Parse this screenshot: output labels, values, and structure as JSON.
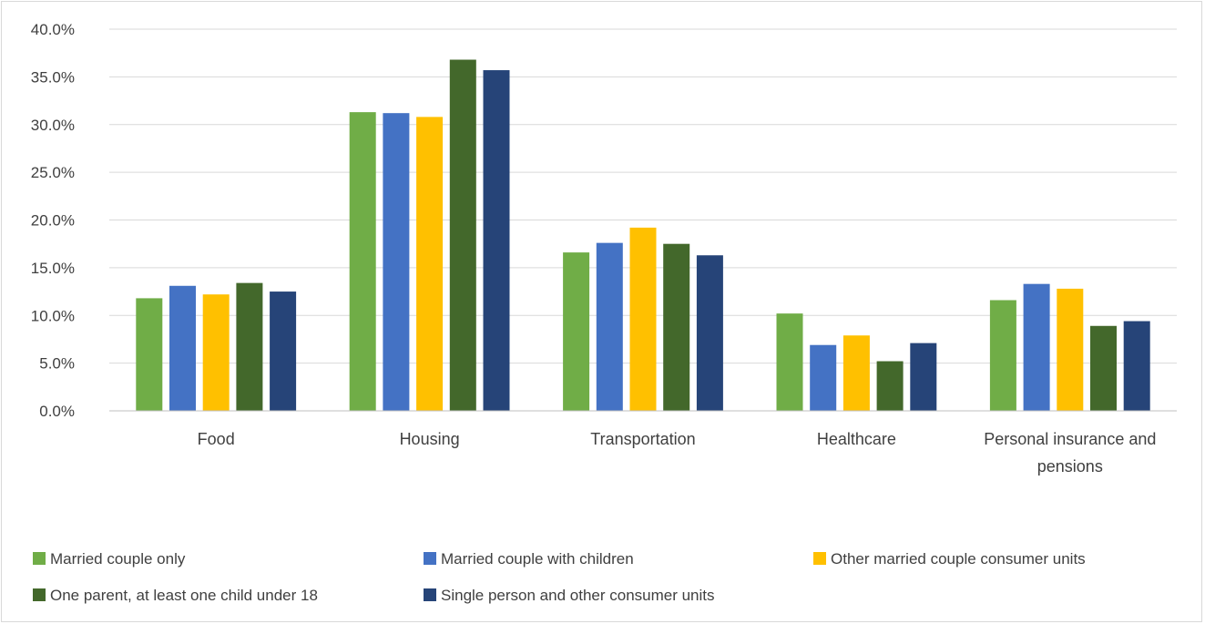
{
  "chart_data": {
    "type": "bar",
    "title": "",
    "xlabel": "",
    "ylabel": "",
    "ylim": [
      0,
      40
    ],
    "y_ticks": [
      "0.0%",
      "5.0%",
      "10.0%",
      "15.0%",
      "20.0%",
      "25.0%",
      "30.0%",
      "35.0%",
      "40.0%"
    ],
    "y_tick_values": [
      0,
      5,
      10,
      15,
      20,
      25,
      30,
      35,
      40
    ],
    "grid": true,
    "legend_position": "bottom",
    "categories": [
      "Food",
      "Housing",
      "Transportation",
      "Healthcare",
      "Personal insurance and pensions"
    ],
    "category_label_lines": [
      [
        "Food"
      ],
      [
        "Housing"
      ],
      [
        "Transportation"
      ],
      [
        "Healthcare"
      ],
      [
        "Personal insurance and",
        "pensions"
      ]
    ],
    "series": [
      {
        "name": "Married couple only",
        "color": "#70AD47",
        "values": [
          11.8,
          31.3,
          16.6,
          10.2,
          11.6
        ]
      },
      {
        "name": "Married couple with children",
        "color": "#4472C4",
        "values": [
          13.1,
          31.2,
          17.6,
          6.9,
          13.3
        ]
      },
      {
        "name": "Other married couple consumer units",
        "color": "#FFC000",
        "values": [
          12.2,
          30.8,
          19.2,
          7.9,
          12.8
        ]
      },
      {
        "name": "One parent, at least one child under 18",
        "color": "#43682B",
        "values": [
          13.4,
          36.8,
          17.5,
          5.2,
          8.9
        ]
      },
      {
        "name": "Single person and other consumer units",
        "color": "#264478",
        "values": [
          12.5,
          35.7,
          16.3,
          7.1,
          9.4
        ]
      }
    ]
  }
}
